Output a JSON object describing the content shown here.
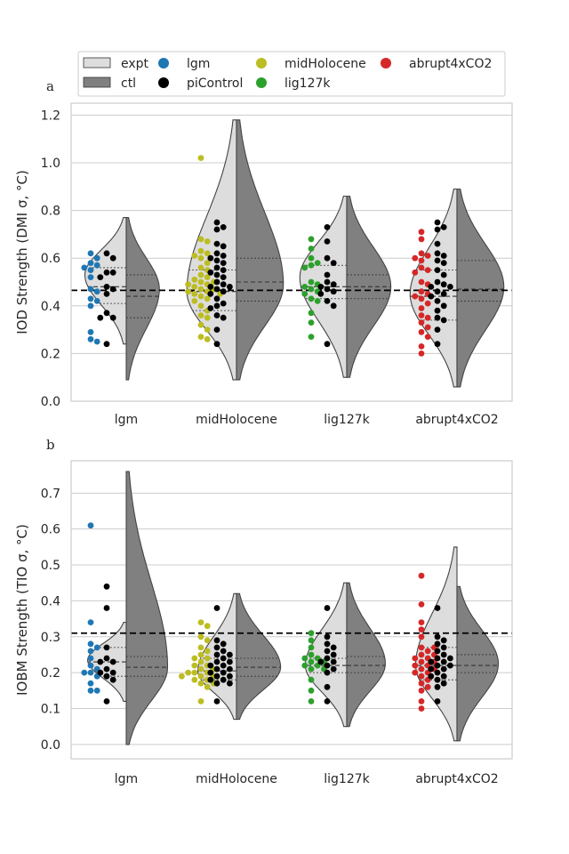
{
  "legend": {
    "items": [
      {
        "label": "expt",
        "kind": "patch",
        "color": "#dddddd"
      },
      {
        "label": "ctl",
        "kind": "patch",
        "color": "#808080"
      },
      {
        "label": "lgm",
        "kind": "dot",
        "color": "#1f77b4"
      },
      {
        "label": "piControl",
        "kind": "dot",
        "color": "#000000"
      },
      {
        "label": "midHolocene",
        "kind": "dot",
        "color": "#bcbd22"
      },
      {
        "label": "lig127k",
        "kind": "dot",
        "color": "#2ca02c"
      },
      {
        "label": "abrupt4xCO2",
        "kind": "dot",
        "color": "#d62728"
      }
    ]
  },
  "colors": {
    "expt_fill": "#dddddd",
    "ctl_fill": "#808080",
    "lgm": "#1f77b4",
    "piControl": "#000000",
    "midHolocene": "#bcbd22",
    "lig127k": "#2ca02c",
    "abrupt4xCO2": "#d62728",
    "grid": "#cccccc"
  },
  "chart_data": [
    {
      "panel": "a",
      "type": "violin",
      "ylabel": "IOD Strength (DMI σ, °C)",
      "categories": [
        "lgm",
        "midHolocene",
        "lig127k",
        "abrupt4xCO2"
      ],
      "ylim": [
        0.0,
        1.25
      ],
      "yticks": [
        0.0,
        0.2,
        0.4,
        0.6,
        0.8,
        1.0,
        1.2
      ],
      "reference_line": 0.465,
      "grid": true,
      "expt_violin": {
        "lgm": {
          "ymin": 0.24,
          "ymax": 0.77,
          "width": 0.75,
          "ymode": 0.53,
          "q1": 0.41,
          "median": 0.48,
          "q3": 0.56
        },
        "midHolocene": {
          "ymin": 0.09,
          "ymax": 1.18,
          "width": 0.9,
          "ymode": 0.46,
          "q1": 0.38,
          "median": 0.46,
          "q3": 0.55
        },
        "lig127k": {
          "ymin": 0.1,
          "ymax": 0.86,
          "width": 0.85,
          "ymode": 0.52,
          "q1": 0.43,
          "median": 0.48,
          "q3": 0.57
        },
        "abrupt4xCO2": {
          "ymin": 0.06,
          "ymax": 0.89,
          "width": 0.85,
          "ymode": 0.45,
          "q1": 0.34,
          "median": 0.44,
          "q3": 0.55
        }
      },
      "ctl_violin": {
        "lgm": {
          "ymin": 0.09,
          "ymax": 0.77,
          "width": 0.6,
          "ymode": 0.47,
          "q1": 0.35,
          "median": 0.44,
          "q3": 0.53
        },
        "midHolocene": {
          "ymin": 0.09,
          "ymax": 1.18,
          "width": 0.85,
          "ymode": 0.49,
          "q1": 0.42,
          "median": 0.5,
          "q3": 0.6
        },
        "lig127k": {
          "ymin": 0.1,
          "ymax": 0.86,
          "width": 0.8,
          "ymode": 0.48,
          "q1": 0.43,
          "median": 0.48,
          "q3": 0.53
        },
        "abrupt4xCO2": {
          "ymin": 0.06,
          "ymax": 0.89,
          "width": 0.85,
          "ymode": 0.48,
          "q1": 0.42,
          "median": 0.47,
          "q3": 0.59
        }
      },
      "points": {
        "lgm": {
          "expt": [
            0.62,
            0.6,
            0.58,
            0.57,
            0.56,
            0.55,
            0.52,
            0.47,
            0.46,
            0.43,
            0.42,
            0.4,
            0.29,
            0.26,
            0.25
          ],
          "ctl": [
            0.62,
            0.6,
            0.54,
            0.54,
            0.52,
            0.48,
            0.47,
            0.45,
            0.37,
            0.35,
            0.35,
            0.24
          ]
        },
        "midHolocene": {
          "expt": [
            1.02,
            0.68,
            0.67,
            0.63,
            0.62,
            0.61,
            0.6,
            0.58,
            0.56,
            0.55,
            0.53,
            0.52,
            0.51,
            0.5,
            0.5,
            0.49,
            0.49,
            0.48,
            0.47,
            0.47,
            0.46,
            0.46,
            0.45,
            0.45,
            0.44,
            0.43,
            0.42,
            0.4,
            0.38,
            0.36,
            0.35,
            0.32,
            0.3,
            0.27,
            0.26
          ],
          "ctl": [
            0.75,
            0.73,
            0.72,
            0.66,
            0.65,
            0.62,
            0.61,
            0.6,
            0.59,
            0.58,
            0.56,
            0.55,
            0.54,
            0.53,
            0.52,
            0.5,
            0.49,
            0.48,
            0.48,
            0.47,
            0.46,
            0.45,
            0.43,
            0.41,
            0.4,
            0.39,
            0.36,
            0.35,
            0.3,
            0.24
          ]
        },
        "lig127k": {
          "expt": [
            0.68,
            0.64,
            0.6,
            0.58,
            0.57,
            0.56,
            0.5,
            0.49,
            0.48,
            0.47,
            0.46,
            0.45,
            0.43,
            0.42,
            0.37,
            0.33,
            0.27
          ],
          "ctl": [
            0.73,
            0.67,
            0.6,
            0.58,
            0.53,
            0.5,
            0.49,
            0.48,
            0.47,
            0.46,
            0.45,
            0.42,
            0.4,
            0.24
          ]
        },
        "abrupt4xCO2": {
          "expt": [
            0.71,
            0.68,
            0.62,
            0.61,
            0.6,
            0.59,
            0.56,
            0.55,
            0.54,
            0.5,
            0.49,
            0.46,
            0.45,
            0.44,
            0.43,
            0.41,
            0.39,
            0.36,
            0.35,
            0.33,
            0.31,
            0.29,
            0.27,
            0.23,
            0.2
          ],
          "ctl": [
            0.75,
            0.73,
            0.72,
            0.66,
            0.62,
            0.61,
            0.59,
            0.58,
            0.55,
            0.53,
            0.5,
            0.49,
            0.48,
            0.48,
            0.46,
            0.45,
            0.44,
            0.42,
            0.4,
            0.38,
            0.35,
            0.34,
            0.3,
            0.24
          ]
        }
      }
    },
    {
      "panel": "b",
      "type": "violin",
      "ylabel": "IOBM Strength (TIO σ, °C)",
      "categories": [
        "lgm",
        "midHolocene",
        "lig127k",
        "abrupt4xCO2"
      ],
      "ylim": [
        -0.04,
        0.79
      ],
      "yticks": [
        0.0,
        0.1,
        0.2,
        0.3,
        0.4,
        0.5,
        0.6,
        0.7
      ],
      "reference_line": 0.31,
      "grid": true,
      "expt_violin": {
        "lgm": {
          "ymin": 0.12,
          "ymax": 0.34,
          "width": 0.7,
          "ymode": 0.235,
          "q1": 0.19,
          "median": 0.23,
          "q3": 0.27
        },
        "midHolocene": {
          "ymin": 0.07,
          "ymax": 0.42,
          "width": 0.7,
          "ymode": 0.205,
          "q1": 0.18,
          "median": 0.205,
          "q3": 0.24
        },
        "lig127k": {
          "ymin": 0.05,
          "ymax": 0.45,
          "width": 0.75,
          "ymode": 0.22,
          "q1": 0.2,
          "median": 0.22,
          "q3": 0.24
        },
        "abrupt4xCO2": {
          "ymin": 0.01,
          "ymax": 0.55,
          "width": 0.75,
          "ymode": 0.22,
          "q1": 0.18,
          "median": 0.22,
          "q3": 0.27
        }
      },
      "ctl_violin": {
        "lgm": {
          "ymin": 0.0,
          "ymax": 0.76,
          "width": 0.75,
          "ymode": 0.215,
          "q1": 0.19,
          "median": 0.215,
          "q3": 0.245
        },
        "midHolocene": {
          "ymin": 0.07,
          "ymax": 0.42,
          "width": 0.8,
          "ymode": 0.215,
          "q1": 0.19,
          "median": 0.215,
          "q3": 0.24
        },
        "lig127k": {
          "ymin": 0.05,
          "ymax": 0.45,
          "width": 0.7,
          "ymode": 0.225,
          "q1": 0.2,
          "median": 0.22,
          "q3": 0.245
        },
        "abrupt4xCO2": {
          "ymin": 0.01,
          "ymax": 0.44,
          "width": 0.75,
          "ymode": 0.225,
          "q1": 0.2,
          "median": 0.22,
          "q3": 0.25
        }
      },
      "points": {
        "lgm": {
          "expt": [
            0.61,
            0.34,
            0.28,
            0.27,
            0.26,
            0.24,
            0.22,
            0.21,
            0.2,
            0.2,
            0.19,
            0.17,
            0.15,
            0.15
          ],
          "ctl": [
            0.44,
            0.38,
            0.27,
            0.24,
            0.23,
            0.23,
            0.21,
            0.2,
            0.2,
            0.19,
            0.18,
            0.12
          ]
        },
        "midHolocene": {
          "expt": [
            0.34,
            0.33,
            0.3,
            0.29,
            0.27,
            0.26,
            0.25,
            0.24,
            0.24,
            0.23,
            0.22,
            0.22,
            0.21,
            0.21,
            0.2,
            0.2,
            0.2,
            0.19,
            0.19,
            0.19,
            0.18,
            0.18,
            0.17,
            0.17,
            0.16,
            0.12
          ],
          "ctl": [
            0.38,
            0.29,
            0.28,
            0.27,
            0.26,
            0.25,
            0.25,
            0.24,
            0.23,
            0.23,
            0.22,
            0.22,
            0.21,
            0.21,
            0.2,
            0.2,
            0.19,
            0.19,
            0.18,
            0.18,
            0.17,
            0.17,
            0.12
          ]
        },
        "lig127k": {
          "expt": [
            0.31,
            0.29,
            0.27,
            0.25,
            0.24,
            0.24,
            0.23,
            0.23,
            0.22,
            0.22,
            0.21,
            0.21,
            0.18,
            0.15,
            0.12
          ],
          "ctl": [
            0.38,
            0.3,
            0.28,
            0.27,
            0.26,
            0.25,
            0.24,
            0.23,
            0.23,
            0.22,
            0.21,
            0.2,
            0.16,
            0.12
          ]
        },
        "abrupt4xCO2": {
          "expt": [
            0.47,
            0.39,
            0.34,
            0.32,
            0.3,
            0.27,
            0.27,
            0.26,
            0.25,
            0.25,
            0.24,
            0.24,
            0.23,
            0.23,
            0.22,
            0.22,
            0.21,
            0.21,
            0.2,
            0.2,
            0.19,
            0.18,
            0.17,
            0.16,
            0.15,
            0.12,
            0.1
          ],
          "ctl": [
            0.38,
            0.3,
            0.29,
            0.28,
            0.27,
            0.26,
            0.25,
            0.24,
            0.24,
            0.23,
            0.23,
            0.22,
            0.22,
            0.21,
            0.21,
            0.2,
            0.19,
            0.19,
            0.18,
            0.17,
            0.16,
            0.12
          ]
        }
      }
    }
  ]
}
